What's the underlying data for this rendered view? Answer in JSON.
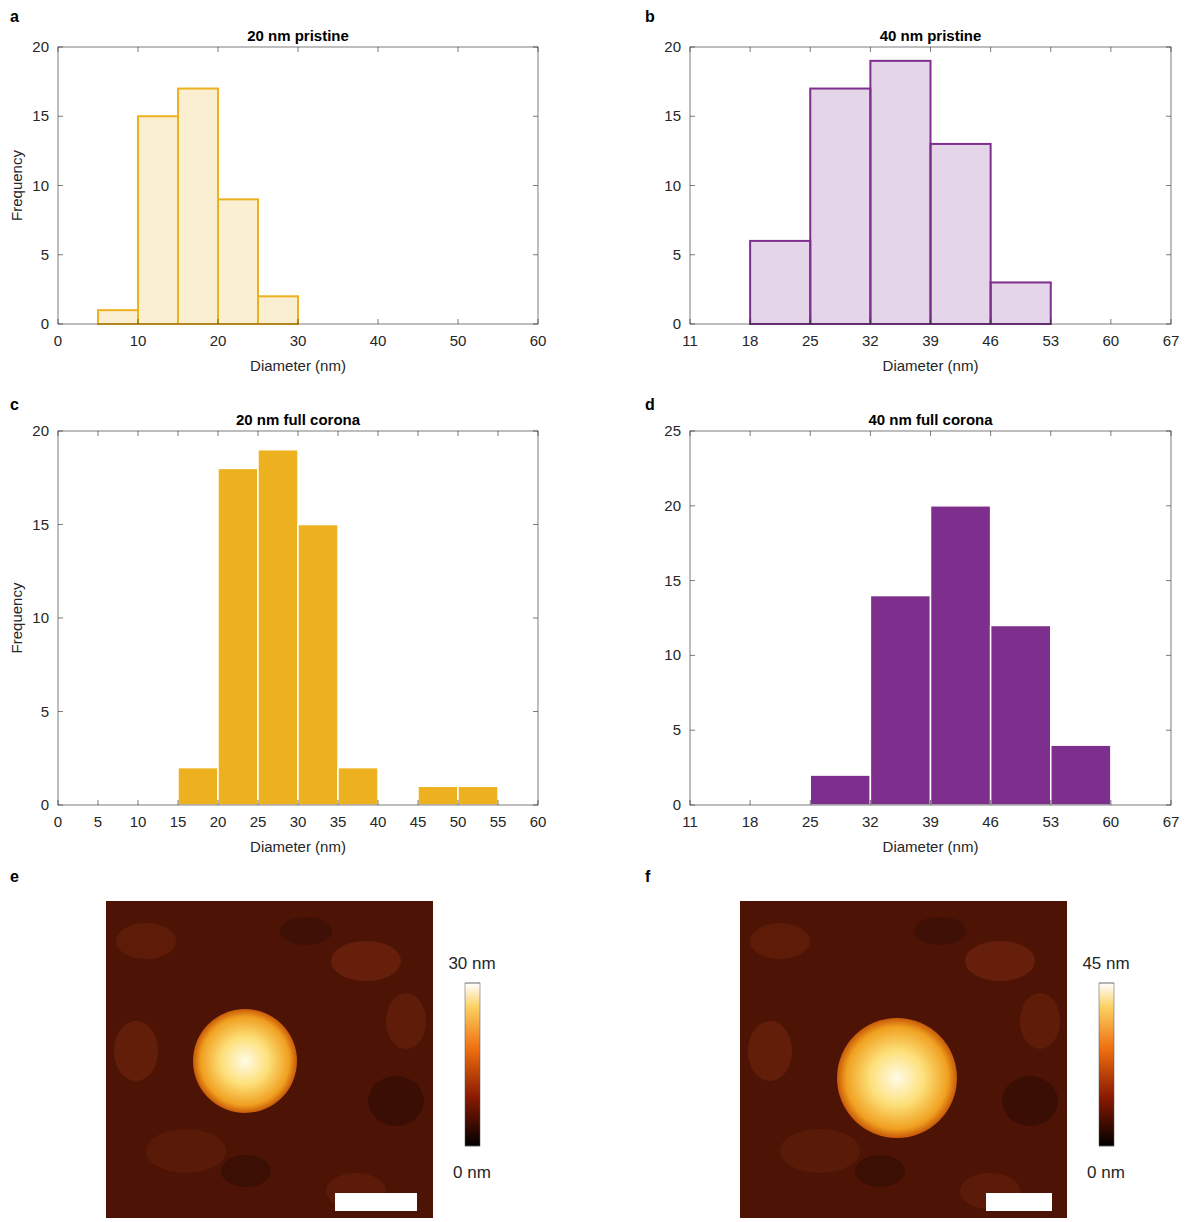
{
  "chart_data": [
    {
      "type": "histogram",
      "panel": "a",
      "title": "20 nm pristine",
      "x_label": "Diameter (nm)",
      "y_label": "Frequency",
      "bins": [
        0,
        5,
        10,
        15,
        20,
        25,
        30,
        35,
        40,
        45,
        50,
        55,
        60
      ],
      "values": [
        0,
        1,
        15,
        17,
        9,
        2,
        0,
        0,
        0,
        0,
        0,
        0
      ],
      "color": "#edb120",
      "line_style": "outline",
      "xlim": [
        0,
        60
      ],
      "xticks": [
        0,
        10,
        20,
        30,
        40,
        50,
        60
      ],
      "ylim": [
        0,
        20
      ],
      "yticks": [
        0,
        5,
        10,
        15,
        20
      ],
      "grid": false
    },
    {
      "type": "histogram",
      "panel": "b",
      "title": "40 nm pristine",
      "x_label": "Diameter (nm)",
      "bins": [
        11,
        18,
        25,
        32,
        39,
        46,
        53,
        60,
        67
      ],
      "values": [
        0,
        6,
        17,
        19,
        13,
        3,
        0,
        0
      ],
      "color": "#7e2f8e",
      "line_style": "outline",
      "xlim": [
        11,
        67
      ],
      "xticks": [
        11,
        18,
        25,
        32,
        39,
        46,
        53,
        60,
        67
      ],
      "ylim": [
        0,
        20
      ],
      "yticks": [
        0,
        5,
        10,
        15,
        20
      ],
      "grid": false
    },
    {
      "type": "histogram",
      "panel": "c",
      "title": "20 nm full corona",
      "x_label": "Diameter (nm)",
      "y_label": "Frequency",
      "bins": [
        0,
        5,
        10,
        15,
        20,
        25,
        30,
        35,
        40,
        45,
        50,
        55,
        60
      ],
      "values": [
        0,
        0,
        0,
        2,
        18,
        19,
        15,
        2,
        0,
        1,
        1,
        0
      ],
      "color": "#edb120",
      "line_style": "solid",
      "xlim": [
        0,
        60
      ],
      "xticks": [
        0,
        5,
        10,
        15,
        20,
        25,
        30,
        35,
        40,
        45,
        50,
        55,
        60
      ],
      "ylim": [
        0,
        20
      ],
      "yticks": [
        0,
        5,
        10,
        15,
        20
      ],
      "grid": false
    },
    {
      "type": "histogram",
      "panel": "d",
      "title": "40 nm full corona",
      "x_label": "Diameter (nm)",
      "bins": [
        11,
        18,
        25,
        32,
        39,
        46,
        53,
        60,
        67
      ],
      "values": [
        0,
        0,
        2,
        14,
        20,
        12,
        4,
        0
      ],
      "color": "#7e2f8e",
      "line_style": "solid",
      "xlim": [
        11,
        67
      ],
      "xticks": [
        11,
        18,
        25,
        32,
        39,
        46,
        53,
        60,
        67
      ],
      "ylim": [
        0,
        25
      ],
      "yticks": [
        0,
        5,
        10,
        15,
        20,
        25
      ],
      "grid": false
    },
    {
      "type": "image",
      "panel": "e",
      "colorbar_range": [
        0,
        30
      ],
      "colorbar_ticks": [
        {
          "value": 0,
          "label": "0 nm"
        },
        {
          "value": 30,
          "label": "30 nm"
        }
      ]
    },
    {
      "type": "image",
      "panel": "f",
      "colorbar_range": [
        0,
        45
      ],
      "colorbar_ticks": [
        {
          "value": 0,
          "label": "0 nm"
        },
        {
          "value": 45,
          "label": "45 nm"
        }
      ]
    }
  ]
}
